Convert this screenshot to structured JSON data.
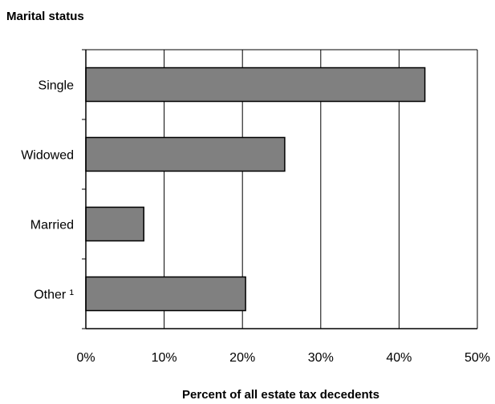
{
  "chart_data": {
    "type": "bar",
    "orientation": "horizontal",
    "title": "Marital status",
    "xlabel": "Percent of all estate tax decedents",
    "ylabel": "",
    "categories": [
      "Single",
      "Widowed",
      "Married",
      "Other ¹"
    ],
    "values": [
      43.3,
      25.4,
      7.4,
      20.4
    ],
    "value_unit": "%",
    "xlim": [
      0,
      50
    ],
    "x_ticks": [
      0,
      10,
      20,
      30,
      40,
      50
    ],
    "x_tick_labels": [
      "0%",
      "10%",
      "20%",
      "30%",
      "40%",
      "50%"
    ],
    "grid": "vertical",
    "legend": "none",
    "bar_color": "#808080",
    "bar_border_color": "#000000"
  }
}
